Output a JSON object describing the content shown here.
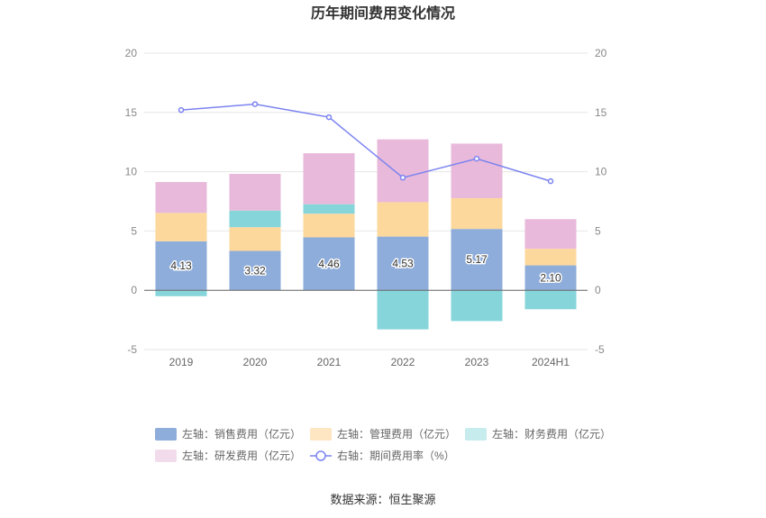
{
  "chart_data": {
    "type": "bar",
    "title": "历年期间费用变化情况",
    "categories": [
      "2019",
      "2020",
      "2021",
      "2022",
      "2023",
      "2024H1"
    ],
    "y_left": {
      "ylim": [
        -5,
        20
      ],
      "ticks": [
        "20",
        "15",
        "10",
        "5",
        "0",
        "-5"
      ]
    },
    "y_right": {
      "ylim": [
        -5,
        20
      ],
      "ticks": [
        "20",
        "15",
        "10",
        "5",
        "0",
        "-5"
      ]
    },
    "grid": true,
    "legend_position": "bottom",
    "stacked": true,
    "series": [
      {
        "name": "左轴：销售费用（亿元）",
        "axis": "left",
        "kind": "bar",
        "color": "#8eadda",
        "values": [
          4.13,
          3.32,
          4.46,
          4.53,
          5.17,
          2.1
        ],
        "labels": [
          "4.13",
          "3.32",
          "4.46",
          "4.53",
          "5.17",
          "2.10"
        ]
      },
      {
        "name": "左轴：管理费用（亿元）",
        "axis": "left",
        "kind": "bar",
        "color": "#fdd89c",
        "values": [
          2.4,
          2.0,
          2.0,
          2.9,
          2.6,
          1.4
        ]
      },
      {
        "name": "左轴：财务费用（亿元）",
        "axis": "left",
        "kind": "bar",
        "color": "#86d5da",
        "values": [
          -0.5,
          1.4,
          0.8,
          -3.3,
          -2.6,
          -1.6
        ]
      },
      {
        "name": "左轴：研发费用（亿元）",
        "axis": "left",
        "kind": "bar",
        "color": "#e8b9da",
        "values": [
          2.6,
          3.1,
          4.3,
          5.3,
          4.6,
          2.5
        ]
      },
      {
        "name": "右轴：期间费用率（%）",
        "axis": "right",
        "kind": "line",
        "color": "#7b83f0",
        "values": [
          15.2,
          15.7,
          14.6,
          9.5,
          11.1,
          9.2
        ]
      }
    ]
  },
  "footer": {
    "source": "数据来源：恒生聚源"
  }
}
